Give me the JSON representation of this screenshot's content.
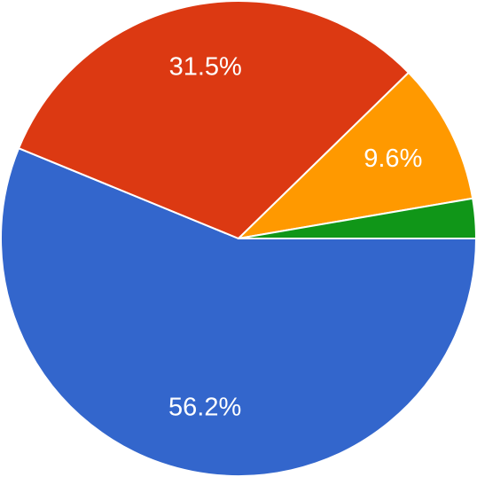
{
  "chart_data": {
    "type": "pie",
    "values": [
      56.2,
      31.5,
      9.6,
      2.7
    ],
    "value_labels": [
      "56.2%",
      "31.5%",
      "9.6%",
      null
    ],
    "colors": [
      "#3366cc",
      "#dc3912",
      "#ff9900",
      "#109618"
    ],
    "start_angle": 0,
    "direction": "clockwise"
  }
}
